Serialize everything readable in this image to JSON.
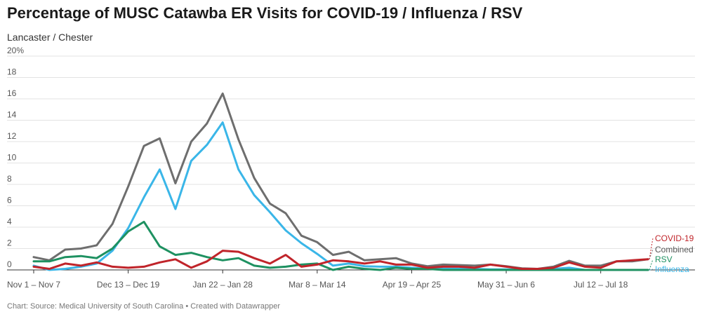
{
  "title": "Percentage of MUSC Catawba ER Visits for COVID-19 / Influenza / RSV",
  "subtitle": "Lancaster / Chester",
  "footer": "Chart: Source: Medical University of South Carolina • Created with Datawrapper",
  "chart_data": {
    "type": "line",
    "ylim": [
      0,
      20
    ],
    "y_ticks": [
      "0",
      "2",
      "4",
      "6",
      "8",
      "10",
      "12",
      "14",
      "16",
      "18",
      "20%"
    ],
    "x_tick_labels": [
      {
        "index": 0,
        "label": "Nov 1 – Nov 7"
      },
      {
        "index": 6,
        "label": "Dec 13 – Dec 19"
      },
      {
        "index": 12,
        "label": "Jan 22 – Jan 28"
      },
      {
        "index": 18,
        "label": "Mar 8 – Mar 14"
      },
      {
        "index": 24,
        "label": "Apr 19 – Apr 25"
      },
      {
        "index": 30,
        "label": "May 31 – Jun 6"
      },
      {
        "index": 36,
        "label": "Jul 12 – Jul 18"
      }
    ],
    "grid": true,
    "legend": "right-end labels",
    "series": [
      {
        "name": "Combined",
        "color": "#6e6e6e",
        "values": [
          1.2,
          0.9,
          1.9,
          2.0,
          2.3,
          4.3,
          7.8,
          11.6,
          12.3,
          8.1,
          12.0,
          13.7,
          16.5,
          12.2,
          8.6,
          6.2,
          5.3,
          3.2,
          2.6,
          1.4,
          1.7,
          0.9,
          1.0,
          1.1,
          0.6,
          0.35,
          0.5,
          0.45,
          0.4,
          0.5,
          0.35,
          0.15,
          0.1,
          0.3,
          0.85,
          0.4,
          0.4,
          0.8,
          0.8,
          1.0
        ]
      },
      {
        "name": "Influenza",
        "color": "#3ab6e8",
        "values": [
          0.4,
          0.0,
          0.1,
          0.3,
          0.6,
          1.8,
          3.9,
          6.8,
          9.4,
          5.7,
          10.2,
          11.7,
          13.8,
          9.4,
          7.0,
          5.4,
          3.7,
          2.5,
          1.5,
          0.4,
          0.6,
          0.35,
          0.3,
          0.3,
          0.2,
          0.1,
          0.1,
          0.1,
          0.1,
          0.05,
          0.05,
          0.0,
          0.0,
          0.1,
          0.2,
          0.0,
          0.0,
          0.0,
          0.0,
          0.0
        ]
      },
      {
        "name": "RSV",
        "color": "#1e9161",
        "values": [
          0.8,
          0.8,
          1.2,
          1.3,
          1.1,
          2.0,
          3.6,
          4.5,
          2.2,
          1.4,
          1.6,
          1.2,
          0.9,
          1.1,
          0.4,
          0.2,
          0.3,
          0.5,
          0.6,
          0.0,
          0.3,
          0.1,
          0.0,
          0.2,
          0.1,
          0.1,
          0.0,
          0.0,
          0.0,
          0.0,
          0.0,
          0.0,
          0.0,
          0.0,
          0.0,
          0.0,
          0.0,
          0.0,
          0.0,
          0.0
        ]
      },
      {
        "name": "COVID-19",
        "color": "#c0242a",
        "values": [
          0.3,
          0.1,
          0.6,
          0.4,
          0.7,
          0.3,
          0.2,
          0.3,
          0.7,
          1.0,
          0.2,
          0.8,
          1.8,
          1.7,
          1.1,
          0.6,
          1.4,
          0.3,
          0.5,
          0.9,
          0.8,
          0.6,
          0.8,
          0.5,
          0.5,
          0.2,
          0.3,
          0.3,
          0.2,
          0.5,
          0.3,
          0.1,
          0.1,
          0.2,
          0.7,
          0.3,
          0.2,
          0.8,
          0.9,
          1.0
        ]
      }
    ]
  }
}
